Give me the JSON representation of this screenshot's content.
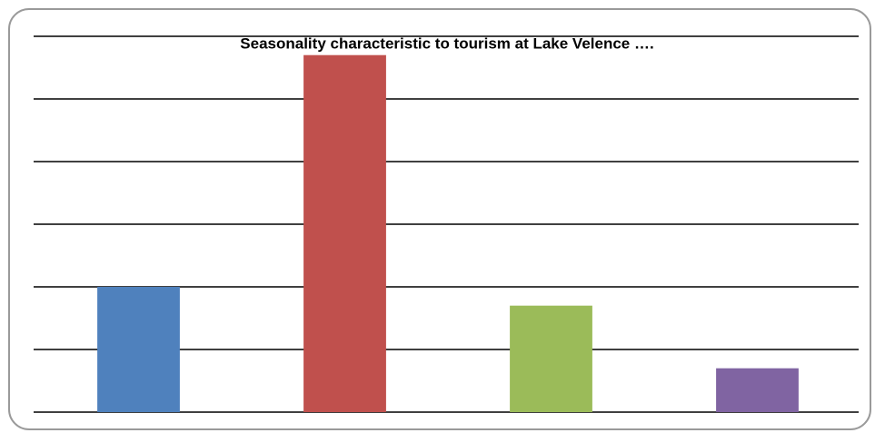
{
  "chart_data": {
    "type": "bar",
    "title": "Seasonality characteristic to tourism at Lake Velence ….",
    "categories": [
      null,
      null,
      null,
      null
    ],
    "values": [
      2.0,
      5.7,
      1.7,
      0.7
    ],
    "colors": [
      "#4f81bd",
      "#c0504d",
      "#9bbb59",
      "#8064a2"
    ],
    "ylim": [
      0,
      6
    ],
    "yticks": [
      0,
      1,
      2,
      3,
      4,
      5,
      6
    ],
    "grid": true
  }
}
